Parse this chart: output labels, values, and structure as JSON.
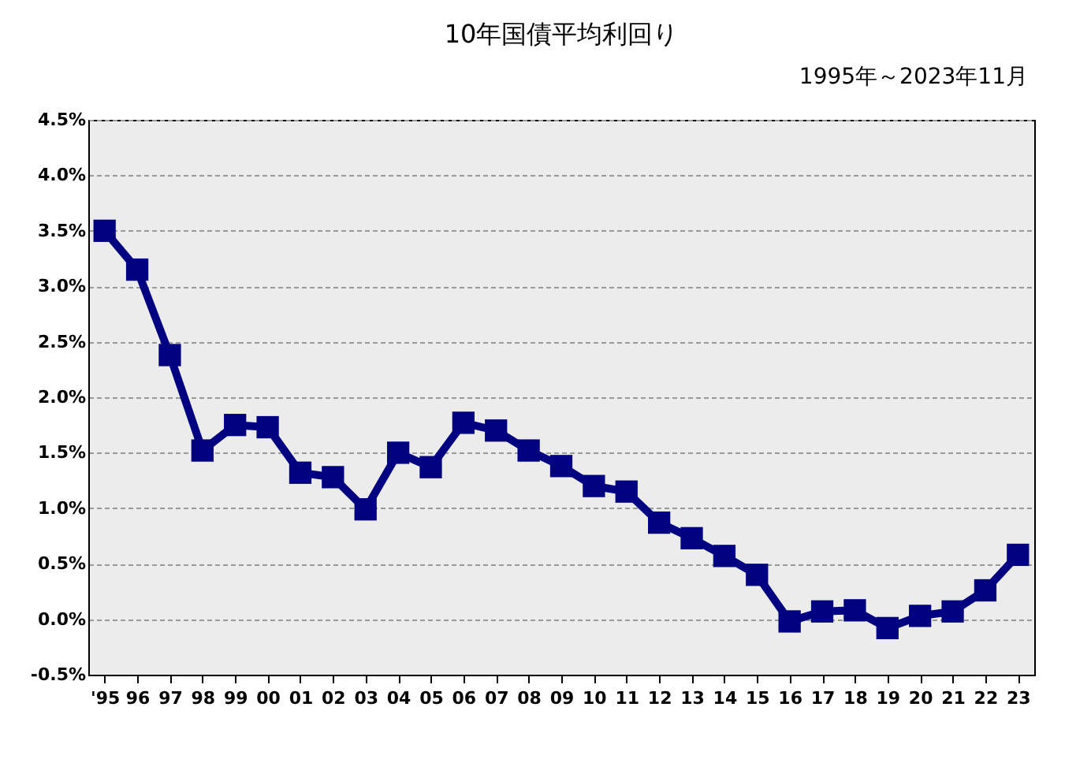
{
  "chart_data": {
    "type": "line",
    "title": "10年国債平均利回り",
    "subtitle": "1995年～2023年11月",
    "categories": [
      "'95",
      "96",
      "97",
      "98",
      "99",
      "00",
      "01",
      "02",
      "03",
      "04",
      "05",
      "06",
      "07",
      "08",
      "09",
      "10",
      "11",
      "12",
      "13",
      "14",
      "15",
      "16",
      "17",
      "18",
      "19",
      "20",
      "21",
      "22",
      "23"
    ],
    "series": [
      {
        "color": "#000080",
        "values": [
          3.5,
          3.15,
          2.38,
          1.52,
          1.75,
          1.73,
          1.32,
          1.28,
          0.99,
          1.5,
          1.37,
          1.77,
          1.7,
          1.52,
          1.38,
          1.2,
          1.15,
          0.87,
          0.73,
          0.57,
          0.4,
          -0.02,
          0.07,
          0.08,
          -0.08,
          0.03,
          0.07,
          0.26,
          0.58
        ]
      }
    ],
    "ylim": [
      -0.5,
      4.5
    ],
    "yticks": [
      {
        "value": -0.5,
        "label": "-0.5%"
      },
      {
        "value": 0,
        "label": "0.0%"
      },
      {
        "value": 0.5,
        "label": "0.5%"
      },
      {
        "value": 1,
        "label": "1.0%"
      },
      {
        "value": 1.5,
        "label": "1.5%"
      },
      {
        "value": 2,
        "label": "2.0%"
      },
      {
        "value": 2.5,
        "label": "2.5%"
      },
      {
        "value": 3,
        "label": "3.0%"
      },
      {
        "value": 3.5,
        "label": "3.5%"
      },
      {
        "value": 4,
        "label": "4.0%"
      },
      {
        "value": 4.5,
        "label": "4.5%"
      }
    ],
    "grid": "y",
    "marker": "square",
    "line_style": "solid"
  }
}
